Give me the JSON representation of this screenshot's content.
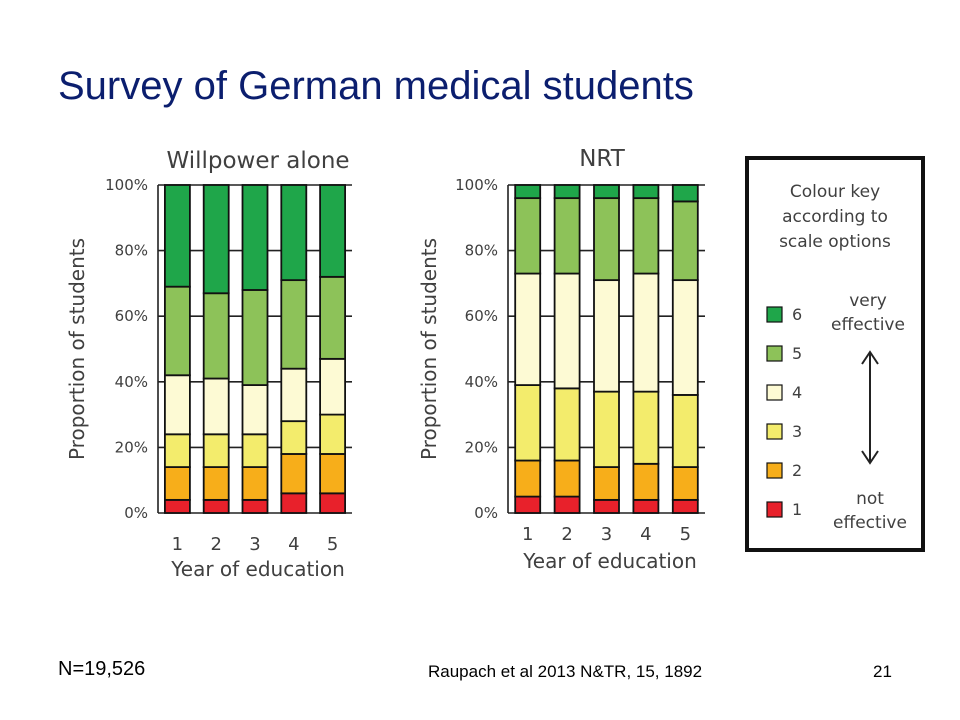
{
  "slide": {
    "title": "Survey of German medical students",
    "footer_left": "N=19,526",
    "footer_citation": "Raupach et al 2013 N&TR, 15, 1892",
    "page_number": "21"
  },
  "colors": {
    "1": "#e8212b",
    "2": "#f7ae1a",
    "3": "#f3ec6c",
    "4": "#fdfad4",
    "5": "#8dc259",
    "6": "#1fa64a"
  },
  "legend": {
    "title_lines": [
      "Colour key",
      "according to",
      "scale options"
    ],
    "entries": [
      {
        "level": "6",
        "label": "6"
      },
      {
        "level": "5",
        "label": "5"
      },
      {
        "level": "4",
        "label": "4"
      },
      {
        "level": "3",
        "label": "3"
      },
      {
        "level": "2",
        "label": "2"
      },
      {
        "level": "1",
        "label": "1"
      }
    ],
    "top_label_lines": [
      "very",
      "effective"
    ],
    "bottom_label_lines": [
      "not",
      "effective"
    ],
    "arrow_icon": "double-headed-arrow"
  },
  "chart_data": [
    {
      "type": "bar",
      "stacked": true,
      "title": "Willpower alone",
      "xlabel": "Year of education",
      "ylabel": "Proportion of students",
      "categories": [
        "1",
        "2",
        "3",
        "4",
        "5"
      ],
      "yticks": [
        "0%",
        "20%",
        "40%",
        "60%",
        "80%",
        "100%"
      ],
      "ylim": [
        0,
        100
      ],
      "grid": true,
      "series": [
        {
          "name": "1",
          "values": [
            4,
            4,
            4,
            6,
            6
          ]
        },
        {
          "name": "2",
          "values": [
            10,
            10,
            10,
            12,
            12
          ]
        },
        {
          "name": "3",
          "values": [
            10,
            10,
            10,
            10,
            12
          ]
        },
        {
          "name": "4",
          "values": [
            18,
            17,
            15,
            16,
            17
          ]
        },
        {
          "name": "5",
          "values": [
            27,
            26,
            29,
            27,
            25
          ]
        },
        {
          "name": "6",
          "values": [
            31,
            33,
            32,
            29,
            28
          ]
        }
      ]
    },
    {
      "type": "bar",
      "stacked": true,
      "title": "NRT",
      "xlabel": "Year of education",
      "ylabel": "Proportion of students",
      "categories": [
        "1",
        "2",
        "3",
        "4",
        "5"
      ],
      "yticks": [
        "0%",
        "20%",
        "40%",
        "60%",
        "80%",
        "100%"
      ],
      "ylim": [
        0,
        100
      ],
      "grid": true,
      "series": [
        {
          "name": "1",
          "values": [
            5,
            5,
            4,
            4,
            4
          ]
        },
        {
          "name": "2",
          "values": [
            11,
            11,
            10,
            11,
            10
          ]
        },
        {
          "name": "3",
          "values": [
            23,
            22,
            23,
            22,
            22
          ]
        },
        {
          "name": "4",
          "values": [
            34,
            35,
            34,
            36,
            35
          ]
        },
        {
          "name": "5",
          "values": [
            23,
            23,
            25,
            23,
            24
          ]
        },
        {
          "name": "6",
          "values": [
            4,
            4,
            4,
            4,
            5
          ]
        }
      ]
    }
  ]
}
